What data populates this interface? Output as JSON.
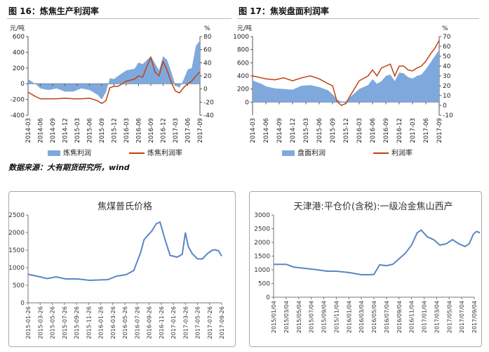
{
  "charts": {
    "coking_profit": {
      "caption": "图 16：炼焦生产利润率",
      "left_unit": "元/吨",
      "right_unit": "%",
      "legend_area": "炼焦利润",
      "legend_line": "炼焦利润率"
    },
    "coal_profit": {
      "caption": "图 17：焦炭盘面利润率",
      "left_unit": "元/吨",
      "right_unit": "%",
      "legend_area": "盘面利润",
      "legend_line": "利润率"
    },
    "coking_coal_platts": {
      "title": "焦煤普氏价格"
    },
    "tianjin_coke": {
      "title": "天津港:平仓价(含税):一级冶金焦山西产"
    }
  },
  "source_note": "数据来源：大有期货研究所，wind",
  "colors": {
    "area": "#7fa9dd",
    "line": "#c0410f",
    "price_line": "#5b86c4"
  },
  "chart_data": [
    {
      "type": "area",
      "title": "图 16：炼焦生产利润率",
      "y_left_ticks": [
        -400,
        -200,
        0,
        200,
        400,
        600
      ],
      "y_right_ticks": [
        -40,
        -20,
        0,
        20,
        40,
        60,
        80
      ],
      "ylim_left": [
        -400,
        600
      ],
      "ylim_right": [
        -40,
        80
      ],
      "x_ticks": [
        "2014-03",
        "2014-06",
        "2014-09",
        "2014-12",
        "2015-03",
        "2015-06",
        "2015-09",
        "2015-12",
        "2016-03",
        "2016-06",
        "2016-09",
        "2016-12",
        "2017-03",
        "2017-06",
        "2017-09"
      ],
      "series": [
        {
          "name": "炼焦利润",
          "kind": "area",
          "axis": "left",
          "x": [
            "2014-03",
            "2014-05",
            "2014-06",
            "2014-08",
            "2014-10",
            "2014-12",
            "2015-02",
            "2015-04",
            "2015-06",
            "2015-08",
            "2015-09",
            "2015-10",
            "2015-11",
            "2015-12",
            "2016-01",
            "2016-03",
            "2016-05",
            "2016-06",
            "2016-07",
            "2016-08",
            "2016-09",
            "2016-10",
            "2016-11",
            "2016-12",
            "2017-01",
            "2017-02",
            "2017-03",
            "2017-04",
            "2017-05",
            "2017-06",
            "2017-07",
            "2017-08",
            "2017-09"
          ],
          "values": [
            60,
            -10,
            -60,
            -80,
            -60,
            -100,
            -100,
            -60,
            -80,
            -140,
            -200,
            -110,
            70,
            60,
            100,
            170,
            190,
            270,
            250,
            300,
            350,
            260,
            170,
            350,
            300,
            150,
            -20,
            -50,
            50,
            180,
            200,
            480,
            550
          ]
        },
        {
          "name": "炼焦利润率",
          "kind": "line",
          "axis": "right",
          "x": [
            "2014-03",
            "2014-05",
            "2014-06",
            "2014-08",
            "2014-10",
            "2014-12",
            "2015-02",
            "2015-04",
            "2015-06",
            "2015-08",
            "2015-09",
            "2015-10",
            "2015-11",
            "2015-12",
            "2016-01",
            "2016-03",
            "2016-05",
            "2016-06",
            "2016-07",
            "2016-08",
            "2016-09",
            "2016-10",
            "2016-11",
            "2016-12",
            "2017-01",
            "2017-02",
            "2017-03",
            "2017-04",
            "2017-05",
            "2017-06",
            "2017-07",
            "2017-08",
            "2017-09"
          ],
          "values": [
            -5,
            -12,
            -15,
            -15,
            -15,
            -14,
            -15,
            -15,
            -14,
            -18,
            -22,
            -18,
            2,
            4,
            4,
            12,
            15,
            20,
            18,
            34,
            48,
            26,
            20,
            42,
            28,
            10,
            -3,
            -6,
            2,
            8,
            12,
            20,
            26
          ]
        }
      ]
    },
    {
      "type": "area",
      "title": "图 17：焦炭盘面利润率",
      "y_left_ticks": [
        0,
        200,
        400,
        600,
        800,
        1000
      ],
      "y_right_ticks": [
        -10,
        0,
        10,
        20,
        30,
        40,
        50,
        60,
        70
      ],
      "ylim_left": [
        -200,
        1000
      ],
      "ylim_right": [
        -10,
        70
      ],
      "x_ticks": [
        "2014-03",
        "2014-06",
        "2014-09",
        "2014-12",
        "2015-03",
        "2015-06",
        "2015-09",
        "2015-12",
        "2016-03",
        "2016-06",
        "2016-09",
        "2016-12",
        "2017-03",
        "2017-06",
        "2017-09"
      ],
      "series": [
        {
          "name": "盘面利润",
          "kind": "area",
          "axis": "left",
          "x": [
            "2014-03",
            "2014-05",
            "2014-06",
            "2014-08",
            "2014-10",
            "2014-12",
            "2015-02",
            "2015-04",
            "2015-06",
            "2015-08",
            "2015-09",
            "2015-10",
            "2015-11",
            "2015-12",
            "2016-01",
            "2016-03",
            "2016-05",
            "2016-06",
            "2016-07",
            "2016-08",
            "2016-09",
            "2016-10",
            "2016-11",
            "2016-12",
            "2017-01",
            "2017-02",
            "2017-03",
            "2017-04",
            "2017-05",
            "2017-06",
            "2017-07",
            "2017-08",
            "2017-09"
          ],
          "values": [
            330,
            280,
            240,
            210,
            200,
            190,
            250,
            260,
            230,
            180,
            120,
            40,
            10,
            10,
            80,
            200,
            260,
            350,
            280,
            320,
            400,
            420,
            320,
            450,
            440,
            380,
            360,
            400,
            420,
            500,
            600,
            700,
            800
          ]
        },
        {
          "name": "利润率",
          "kind": "line",
          "axis": "right",
          "x": [
            "2014-03",
            "2014-05",
            "2014-06",
            "2014-08",
            "2014-10",
            "2014-12",
            "2015-02",
            "2015-04",
            "2015-06",
            "2015-08",
            "2015-09",
            "2015-10",
            "2015-11",
            "2015-12",
            "2016-01",
            "2016-03",
            "2016-05",
            "2016-06",
            "2016-07",
            "2016-08",
            "2016-09",
            "2016-10",
            "2016-11",
            "2016-12",
            "2017-01",
            "2017-02",
            "2017-03",
            "2017-04",
            "2017-05",
            "2017-06",
            "2017-07",
            "2017-08",
            "2017-09"
          ],
          "values": [
            30,
            28,
            27,
            26,
            28,
            25,
            28,
            30,
            27,
            22,
            20,
            4,
            0,
            2,
            10,
            25,
            30,
            36,
            30,
            38,
            40,
            42,
            30,
            40,
            40,
            36,
            35,
            38,
            40,
            45,
            52,
            58,
            66
          ]
        }
      ]
    },
    {
      "type": "line",
      "title": "焦煤普氏价格",
      "y_ticks": [
        0,
        500,
        1000,
        1500,
        2000,
        2500
      ],
      "ylim": [
        0,
        2500
      ],
      "x_ticks": [
        "2015-01-26",
        "2015-03-26",
        "2015-05-26",
        "2015-07-26",
        "2015-09-26",
        "2015-11-26",
        "2016-01-26",
        "2016-03-26",
        "2016-05-26",
        "2016-07-26",
        "2016-09-26",
        "2016-11-26",
        "2017-01-26",
        "2017-03-26",
        "2017-05-26",
        "2017-07-26",
        "2017-09-26"
      ],
      "series": [
        {
          "name": "",
          "x": [
            "2015-01-26",
            "2015-03-01",
            "2015-05-01",
            "2015-06-15",
            "2015-08-01",
            "2015-10-01",
            "2015-12-01",
            "2016-01-15",
            "2016-03-01",
            "2016-04-15",
            "2016-06-01",
            "2016-07-10",
            "2016-08-15",
            "2016-09-01",
            "2016-10-10",
            "2016-11-01",
            "2016-11-20",
            "2016-12-15",
            "2017-01-10",
            "2017-02-15",
            "2017-03-10",
            "2017-03-26",
            "2017-04-10",
            "2017-04-30",
            "2017-05-26",
            "2017-06-20",
            "2017-07-15",
            "2017-08-10",
            "2017-08-25",
            "2017-09-10",
            "2017-09-26"
          ],
          "values": [
            810,
            770,
            690,
            740,
            680,
            680,
            640,
            650,
            660,
            760,
            800,
            920,
            1450,
            1800,
            2050,
            2250,
            2300,
            1800,
            1350,
            1300,
            1380,
            2000,
            1600,
            1400,
            1250,
            1250,
            1400,
            1500,
            1510,
            1480,
            1330
          ]
        }
      ]
    },
    {
      "type": "line",
      "title": "天津港:平仓价(含税):一级冶金焦山西产",
      "y_ticks": [
        0,
        500,
        1000,
        1500,
        2000,
        2500,
        3000
      ],
      "ylim": [
        0,
        3000
      ],
      "x_ticks": [
        "2015/01/04",
        "2015/03/04",
        "2015/05/04",
        "2015/07/04",
        "2015/09/04",
        "2015/11/04",
        "2016/01/04",
        "2016/03/04",
        "2016/05/04",
        "2016/07/04",
        "2016/09/04",
        "2016/11/04",
        "2017/01/04",
        "2017/03/04",
        "2017/05/04",
        "2017/07/04",
        "2017/09/04"
      ],
      "series": [
        {
          "name": "",
          "x": [
            "2015/01/04",
            "2015/03/04",
            "2015/04/10",
            "2015/06/04",
            "2015/08/04",
            "2015/09/20",
            "2015/11/04",
            "2016/01/04",
            "2016/03/04",
            "2016/04/10",
            "2016/05/04",
            "2016/06/01",
            "2016/07/04",
            "2016/08/04",
            "2016/09/04",
            "2016/10/04",
            "2016/11/04",
            "2016/12/01",
            "2016/12/20",
            "2017/01/20",
            "2017/02/20",
            "2017/03/20",
            "2017/04/20",
            "2017/05/20",
            "2017/06/20",
            "2017/07/20",
            "2017/08/10",
            "2017/08/30",
            "2017/09/15",
            "2017/10/01"
          ],
          "values": [
            1200,
            1200,
            1100,
            1050,
            1000,
            950,
            950,
            900,
            820,
            820,
            830,
            1180,
            1150,
            1200,
            1400,
            1600,
            1900,
            2350,
            2450,
            2200,
            2100,
            1900,
            1950,
            2100,
            1950,
            1850,
            1950,
            2300,
            2400,
            2350
          ]
        }
      ]
    }
  ]
}
